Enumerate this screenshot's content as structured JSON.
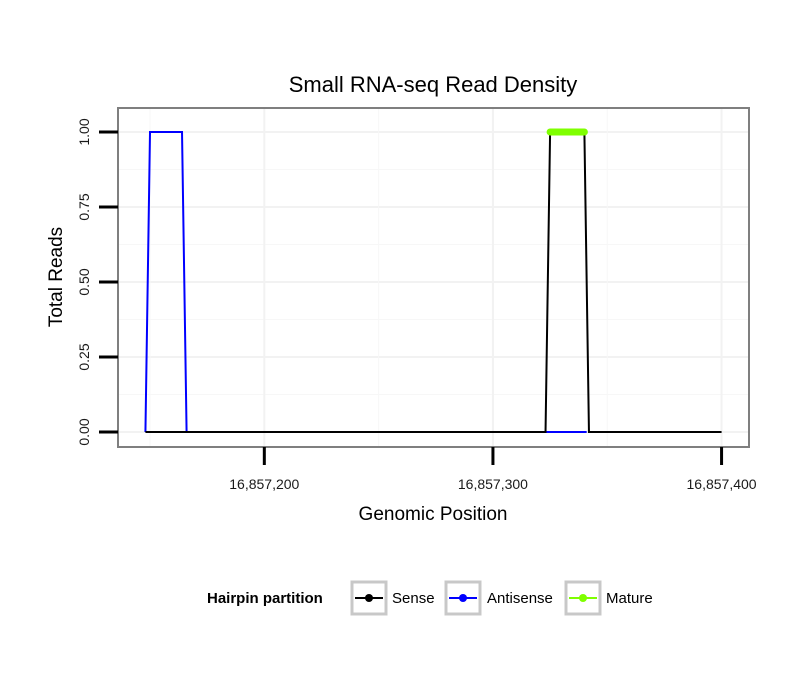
{
  "chart_data": {
    "type": "line",
    "title": "Small RNA-seq Read Density",
    "xlabel": "Genomic Position",
    "ylabel": "Total Reads",
    "xlim": [
      16857136,
      16857412
    ],
    "ylim": [
      -0.05,
      1.08
    ],
    "x_ticks": [
      16857200,
      16857300,
      16857400
    ],
    "x_tick_labels": [
      "16,857,200",
      "16,857,300",
      "16,857,400"
    ],
    "y_ticks": [
      0,
      0.25,
      0.5,
      0.75,
      1.0
    ],
    "y_tick_labels": [
      "0.00",
      "0.25",
      "0.50",
      "0.75",
      "1.00"
    ],
    "grid": true,
    "legend": {
      "title": "Hairpin partition",
      "position": "bottom"
    },
    "series": [
      {
        "name": "Sense",
        "color": "#000000",
        "x": [
          16857148,
          16857323,
          16857325,
          16857340,
          16857342,
          16857400
        ],
        "y": [
          0,
          0,
          1,
          1,
          0,
          0
        ]
      },
      {
        "name": "Antisense",
        "color": "#0000ff",
        "x": [
          16857148,
          16857150,
          16857164,
          16857166,
          16857323,
          16857341
        ],
        "y": [
          0,
          1,
          1,
          0,
          0,
          0
        ]
      },
      {
        "name": "Mature",
        "color": "#7fff00",
        "x": [
          16857325,
          16857340
        ],
        "y": [
          1,
          1
        ]
      }
    ]
  }
}
